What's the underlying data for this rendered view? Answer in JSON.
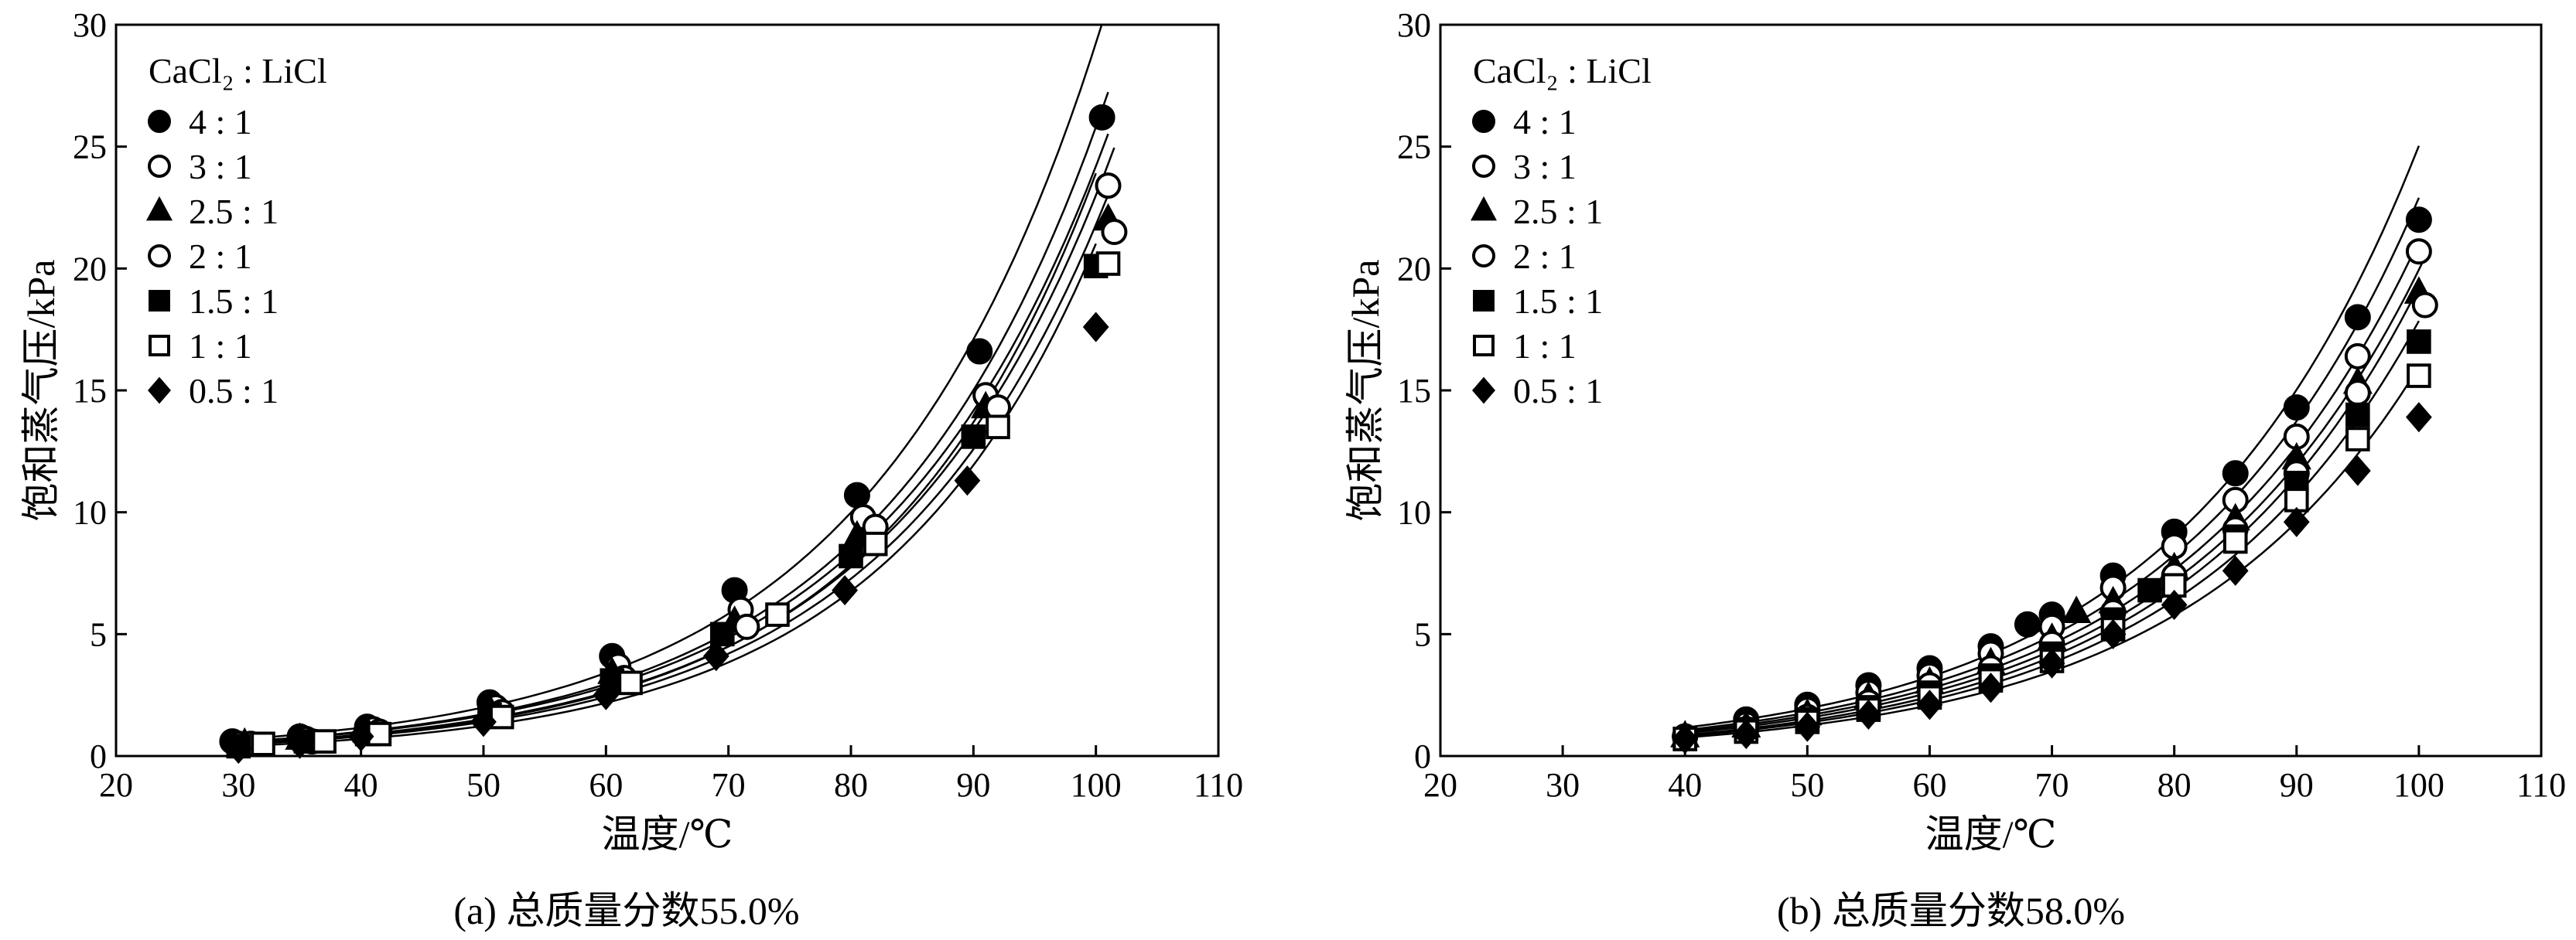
{
  "figure": {
    "caption_a": "(a) 总质量分数55.0%",
    "caption_b": "(b) 总质量分数58.0%"
  },
  "chart_data": [
    {
      "type": "scatter",
      "title": "",
      "caption": "(a) 总质量分数55.0%",
      "xlabel": "温度/℃",
      "ylabel": "饱和蒸气压/kPa",
      "xlim": [
        20,
        110
      ],
      "ylim": [
        0,
        30
      ],
      "xticks": [
        20,
        30,
        40,
        50,
        60,
        70,
        80,
        90,
        100,
        110
      ],
      "yticks": [
        0,
        5,
        10,
        15,
        20,
        25,
        30
      ],
      "legend_title": "CaCl₂ : LiCl",
      "legend_position": "top-left",
      "fit_curves": true,
      "series": [
        {
          "name": "4 : 1",
          "marker": "filled-circle",
          "x": [
            29.5,
            35,
            40.5,
            50.5,
            60.5,
            70.5,
            80.5,
            90.5,
            100.5
          ],
          "y": [
            0.6,
            0.8,
            1.2,
            2.2,
            4.1,
            6.8,
            10.7,
            16.6,
            26.2
          ]
        },
        {
          "name": "3 : 1",
          "marker": "open-circle",
          "x": [
            30,
            35.5,
            41,
            51,
            61,
            71,
            81,
            91,
            101
          ],
          "y": [
            0.5,
            0.7,
            1.1,
            2.0,
            3.7,
            6.0,
            9.8,
            14.8,
            23.4
          ]
        },
        {
          "name": "2.5 : 1",
          "marker": "filled-triangle",
          "x": [
            30.5,
            35,
            40.5,
            50.5,
            60.5,
            70.5,
            80.5,
            91,
            101
          ],
          "y": [
            0.5,
            0.7,
            1.0,
            1.9,
            3.4,
            5.5,
            9.0,
            14.3,
            22.0
          ]
        },
        {
          "name": "2 : 1",
          "marker": "open-circle",
          "x": [
            31,
            36,
            41.5,
            51.5,
            61.5,
            71.5,
            82,
            92,
            101.5
          ],
          "y": [
            0.5,
            0.6,
            1.0,
            1.8,
            3.2,
            5.3,
            9.4,
            14.3,
            21.5
          ]
        },
        {
          "name": "1.5 : 1",
          "marker": "filled-square",
          "x": [
            30,
            35.5,
            40.5,
            50.5,
            60.5,
            69.5,
            80,
            90,
            100
          ],
          "y": [
            0.4,
            0.6,
            0.9,
            1.7,
            3.1,
            5.0,
            8.2,
            13.1,
            20.1
          ]
        },
        {
          "name": "1 : 1",
          "marker": "open-square",
          "x": [
            32,
            37,
            41.5,
            51.5,
            62,
            74,
            82,
            92,
            101
          ],
          "y": [
            0.5,
            0.6,
            0.9,
            1.6,
            3.0,
            5.8,
            8.7,
            13.5,
            20.2
          ]
        },
        {
          "name": "0.5 : 1",
          "marker": "filled-diamond",
          "x": [
            30,
            35,
            40,
            50,
            60,
            69,
            79.5,
            89.5,
            100
          ],
          "y": [
            0.3,
            0.5,
            0.8,
            1.4,
            2.5,
            4.1,
            6.8,
            11.3,
            17.6
          ]
        }
      ]
    },
    {
      "type": "scatter",
      "title": "",
      "caption": "(b) 总质量分数58.0%",
      "xlabel": "温度/℃",
      "ylabel": "饱和蒸气压/kPa",
      "xlim": [
        20,
        110
      ],
      "ylim": [
        0,
        30
      ],
      "xticks": [
        20,
        30,
        40,
        50,
        60,
        70,
        80,
        90,
        100,
        110
      ],
      "yticks": [
        0,
        5,
        10,
        15,
        20,
        25,
        30
      ],
      "legend_title": "CaCl₂ : LiCl",
      "legend_position": "top-left",
      "fit_curves": true,
      "series": [
        {
          "name": "4 : 1",
          "marker": "filled-circle",
          "x": [
            40,
            45,
            50,
            55,
            60,
            65,
            68,
            70,
            75,
            80,
            85,
            90,
            95,
            100
          ],
          "y": [
            0.8,
            1.5,
            2.1,
            2.9,
            3.6,
            4.5,
            5.4,
            5.8,
            7.4,
            9.2,
            11.6,
            14.3,
            18.0,
            22.0
          ]
        },
        {
          "name": "3 : 1",
          "marker": "open-circle",
          "x": [
            40,
            45,
            50,
            55,
            60,
            65,
            70,
            75,
            80,
            85,
            90,
            95,
            100
          ],
          "y": [
            0.8,
            1.3,
            1.9,
            2.6,
            3.3,
            4.2,
            5.3,
            6.9,
            8.6,
            10.5,
            13.1,
            16.4,
            20.7
          ]
        },
        {
          "name": "2.5 : 1",
          "marker": "filled-triangle",
          "x": [
            40,
            45,
            50,
            55,
            60,
            65,
            70,
            72,
            75,
            80,
            85,
            90,
            95,
            100
          ],
          "y": [
            0.8,
            1.2,
            1.7,
            2.4,
            3.0,
            3.8,
            4.8,
            5.9,
            6.3,
            7.7,
            9.7,
            12.2,
            15.3,
            19.0
          ]
        },
        {
          "name": "2 : 1",
          "marker": "open-circle",
          "x": [
            40,
            45,
            50,
            55,
            60,
            65,
            70,
            75,
            80,
            85,
            90,
            95,
            100.5
          ],
          "y": [
            0.8,
            1.1,
            1.6,
            2.2,
            2.9,
            3.6,
            4.6,
            5.9,
            7.4,
            9.3,
            11.6,
            14.9,
            18.5
          ]
        },
        {
          "name": "1.5 : 1",
          "marker": "filled-square",
          "x": [
            40,
            45,
            50,
            55,
            60,
            65,
            70,
            75,
            78,
            80,
            85,
            90,
            95,
            100
          ],
          "y": [
            0.7,
            1.1,
            1.5,
            2.0,
            2.6,
            3.3,
            4.2,
            5.6,
            6.8,
            7.0,
            9.0,
            11.2,
            14.0,
            17.0
          ]
        },
        {
          "name": "1 : 1",
          "marker": "open-square",
          "x": [
            40,
            45,
            50,
            55,
            60,
            65,
            70,
            75,
            80,
            85,
            90,
            95,
            100
          ],
          "y": [
            0.7,
            1.0,
            1.4,
            1.9,
            2.4,
            3.1,
            3.9,
            5.2,
            7.0,
            8.8,
            10.5,
            13.0,
            15.6
          ]
        },
        {
          "name": "0.5 : 1",
          "marker": "filled-diamond",
          "x": [
            40,
            45,
            50,
            55,
            60,
            65,
            70,
            75,
            80,
            85,
            90,
            95,
            100
          ],
          "y": [
            0.7,
            0.9,
            1.2,
            1.7,
            2.1,
            2.8,
            3.8,
            5.0,
            6.2,
            7.6,
            9.6,
            11.7,
            13.9
          ]
        }
      ]
    }
  ]
}
